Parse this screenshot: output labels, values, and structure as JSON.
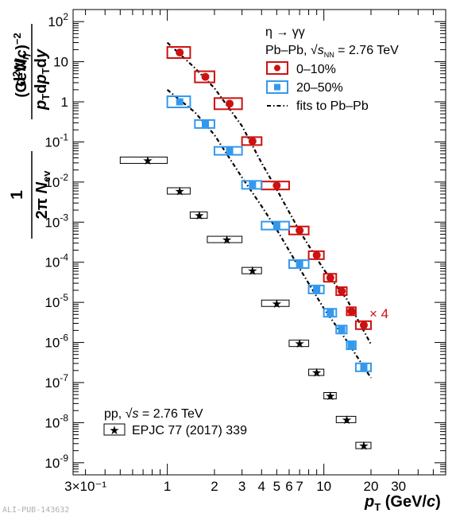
{
  "chart_data": {
    "type": "scatter",
    "x_scale": "log",
    "y_scale": "log",
    "xlim": [
      0.25,
      60
    ],
    "ylim": [
      5e-10,
      200
    ],
    "x_tick_labels": [
      {
        "x": 0.3,
        "label": "3×10⁻¹"
      },
      {
        "x": 1,
        "label": "1"
      },
      {
        "x": 2,
        "label": "2"
      },
      {
        "x": 3,
        "label": "3"
      },
      {
        "x": 4,
        "label": "4"
      },
      {
        "x": 5,
        "label": "5"
      },
      {
        "x": 6,
        "label": "6"
      },
      {
        "x": 7,
        "label": "7"
      },
      {
        "x": 10,
        "label": "10"
      },
      {
        "x": 20,
        "label": "20"
      },
      {
        "x": 30,
        "label": "30"
      }
    ],
    "y_tick_exponents": [
      2,
      1,
      0,
      -1,
      -2,
      -3,
      -4,
      -5,
      -6,
      -7,
      -8,
      -9
    ],
    "xlabel": {
      "main": "p",
      "sub": "T",
      "unit": "(GeV/c)"
    },
    "ylabel": "(1 / 2π N_ev) d²N_η / (p_T dp_T dy) (GeV/c)⁻²",
    "legend": {
      "title": "η → γγ",
      "system": "Pb–Pb, √s_NN = 2.76 TeV",
      "entries": [
        "0–10%",
        "20–50%",
        "fits to Pb–Pb"
      ]
    },
    "pp_label": "pp, √s = 2.76 TeV",
    "pp_reference": "EPJC 77 (2017) 339",
    "scale_note": "× 4",
    "pub_id": "ALI-PUB-143632",
    "series": [
      {
        "name": "0–10%",
        "color": "#cc1111",
        "marker": "circle",
        "points": [
          {
            "x": 1.2,
            "y": 17,
            "xlo": 1.0,
            "xhi": 1.4
          },
          {
            "x": 1.75,
            "y": 4.2,
            "xlo": 1.5,
            "xhi": 2.0
          },
          {
            "x": 2.5,
            "y": 0.9,
            "xlo": 2.0,
            "xhi": 3.0
          },
          {
            "x": 3.5,
            "y": 0.105,
            "xlo": 3.0,
            "xhi": 4.0
          },
          {
            "x": 5.0,
            "y": 0.0082,
            "xlo": 4.0,
            "xhi": 6.0
          },
          {
            "x": 7.0,
            "y": 0.00062,
            "xlo": 6.0,
            "xhi": 8.0
          },
          {
            "x": 9.0,
            "y": 0.00015,
            "xlo": 8.0,
            "xhi": 10.0
          },
          {
            "x": 11.0,
            "y": 4.1e-05,
            "xlo": 10.0,
            "xhi": 12.0
          },
          {
            "x": 13.0,
            "y": 1.9e-05,
            "xlo": 12.0,
            "xhi": 14.0
          },
          {
            "x": 15.0,
            "y": 6e-06,
            "xlo": 14.0,
            "xhi": 16.0
          },
          {
            "x": 18.0,
            "y": 2.7e-06,
            "xlo": 16.0,
            "xhi": 20.0
          }
        ]
      },
      {
        "name": "20–50%",
        "color": "#3399ee",
        "marker": "square",
        "points": [
          {
            "x": 1.2,
            "y": 1.0,
            "xlo": 1.0,
            "xhi": 1.4
          },
          {
            "x": 1.75,
            "y": 0.28,
            "xlo": 1.5,
            "xhi": 2.0
          },
          {
            "x": 2.5,
            "y": 0.06,
            "xlo": 2.0,
            "xhi": 3.0
          },
          {
            "x": 3.5,
            "y": 0.0085,
            "xlo": 3.0,
            "xhi": 4.0
          },
          {
            "x": 5.0,
            "y": 0.00082,
            "xlo": 4.0,
            "xhi": 6.0
          },
          {
            "x": 7.0,
            "y": 9e-05,
            "xlo": 6.0,
            "xhi": 8.0
          },
          {
            "x": 9.0,
            "y": 2.1e-05,
            "xlo": 8.0,
            "xhi": 10.0
          },
          {
            "x": 11.0,
            "y": 5.5e-06,
            "xlo": 10.0,
            "xhi": 12.0
          },
          {
            "x": 13.0,
            "y": 2.1e-06,
            "xlo": 12.0,
            "xhi": 14.0
          },
          {
            "x": 15.0,
            "y": 8.5e-07,
            "xlo": 14.0,
            "xhi": 16.0
          },
          {
            "x": 18.0,
            "y": 2.4e-07,
            "xlo": 16.0,
            "xhi": 20.0
          }
        ]
      },
      {
        "name": "pp, √s = 2.76 TeV (EPJC 77 (2017) 339)",
        "color": "#000000",
        "marker": "star",
        "points": [
          {
            "x": 0.75,
            "y": 0.035,
            "xlo": 0.5,
            "xhi": 1.0
          },
          {
            "x": 1.2,
            "y": 0.006,
            "xlo": 1.0,
            "xhi": 1.4
          },
          {
            "x": 1.6,
            "y": 0.0015,
            "xlo": 1.4,
            "xhi": 1.8
          },
          {
            "x": 2.4,
            "y": 0.00037,
            "xlo": 1.8,
            "xhi": 3.0
          },
          {
            "x": 3.5,
            "y": 6.2e-05,
            "xlo": 3.0,
            "xhi": 4.0
          },
          {
            "x": 5.0,
            "y": 9.5e-06,
            "xlo": 4.0,
            "xhi": 6.0
          },
          {
            "x": 7.0,
            "y": 9.5e-07,
            "xlo": 6.0,
            "xhi": 8.0
          },
          {
            "x": 9.0,
            "y": 1.8e-07,
            "xlo": 8.0,
            "xhi": 10.0
          },
          {
            "x": 11.0,
            "y": 4.7e-08,
            "xlo": 10.0,
            "xhi": 12.0
          },
          {
            "x": 14.0,
            "y": 1.2e-08,
            "xlo": 12.0,
            "xhi": 16.0
          },
          {
            "x": 18.0,
            "y": 2.7e-09,
            "xlo": 16.0,
            "xhi": 20.0
          }
        ]
      },
      {
        "name": "fits to Pb–Pb (0–10%)",
        "color": "#000000",
        "marker": "dash-dot-line",
        "points": [
          {
            "x": 1.0,
            "y": 30
          },
          {
            "x": 1.5,
            "y": 7
          },
          {
            "x": 2.0,
            "y": 2.2
          },
          {
            "x": 3.0,
            "y": 0.25
          },
          {
            "x": 4.0,
            "y": 0.03
          },
          {
            "x": 5.0,
            "y": 0.0065
          },
          {
            "x": 7.0,
            "y": 0.0006
          },
          {
            "x": 10.0,
            "y": 6.5e-05
          },
          {
            "x": 14.0,
            "y": 1.2e-05
          },
          {
            "x": 20.0,
            "y": 9e-07
          }
        ]
      },
      {
        "name": "fits to Pb–Pb (20–50%)",
        "color": "#000000",
        "marker": "dash-dot-line",
        "points": [
          {
            "x": 1.0,
            "y": 2.0
          },
          {
            "x": 1.5,
            "y": 0.55
          },
          {
            "x": 2.0,
            "y": 0.15
          },
          {
            "x": 3.0,
            "y": 0.013
          },
          {
            "x": 4.0,
            "y": 0.0025
          },
          {
            "x": 5.0,
            "y": 0.00065
          },
          {
            "x": 7.0,
            "y": 7e-05
          },
          {
            "x": 10.0,
            "y": 7e-06
          },
          {
            "x": 14.0,
            "y": 1.1e-06
          },
          {
            "x": 20.0,
            "y": 1.3e-07
          }
        ]
      }
    ]
  }
}
